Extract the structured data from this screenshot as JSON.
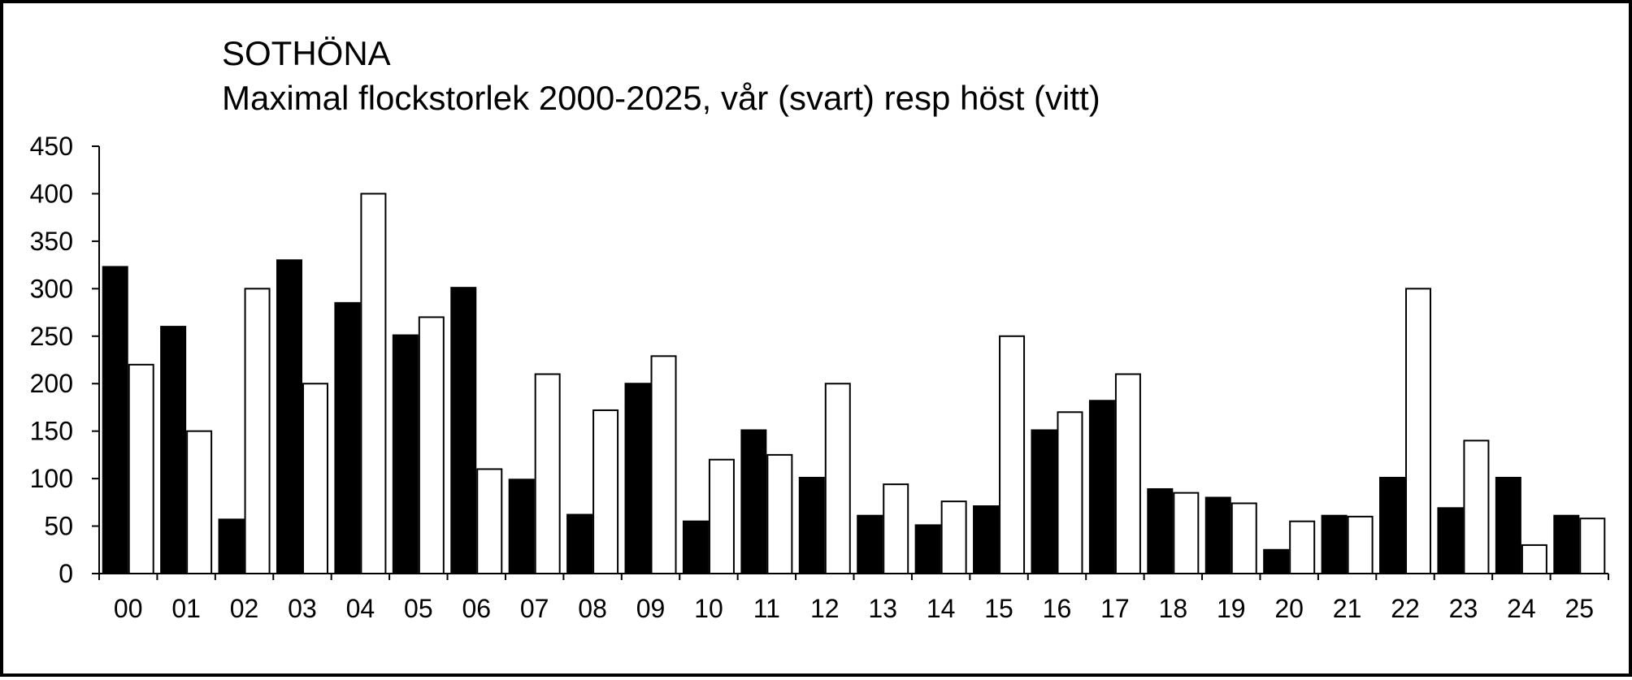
{
  "chart_data": {
    "type": "bar",
    "title": "SOTHÖNA",
    "subtitle": "Maximal flockstorlek 2000-2025, vår (svart) resp höst (vitt)",
    "xlabel": "",
    "ylabel": "",
    "ylim": [
      0,
      450
    ],
    "yticks": [
      0,
      50,
      100,
      150,
      200,
      250,
      300,
      350,
      400,
      450
    ],
    "grid": false,
    "legend": "none",
    "categories": [
      "00",
      "01",
      "02",
      "03",
      "04",
      "05",
      "06",
      "07",
      "08",
      "09",
      "10",
      "11",
      "12",
      "13",
      "14",
      "15",
      "16",
      "17",
      "18",
      "19",
      "20",
      "21",
      "22",
      "23",
      "24",
      "25"
    ],
    "series": [
      {
        "color": "#000000",
        "values": [
          323,
          260,
          57,
          330,
          285,
          251,
          301,
          99,
          62,
          200,
          55,
          151,
          101,
          61,
          51,
          71,
          151,
          182,
          89,
          80,
          25,
          61,
          101,
          69,
          101,
          61
        ]
      },
      {
        "color": "#ffffff",
        "values": [
          220,
          150,
          300,
          200,
          400,
          270,
          110,
          210,
          172,
          229,
          120,
          125,
          200,
          94,
          76,
          250,
          170,
          210,
          85,
          74,
          55,
          60,
          300,
          140,
          30,
          58
        ]
      }
    ]
  }
}
